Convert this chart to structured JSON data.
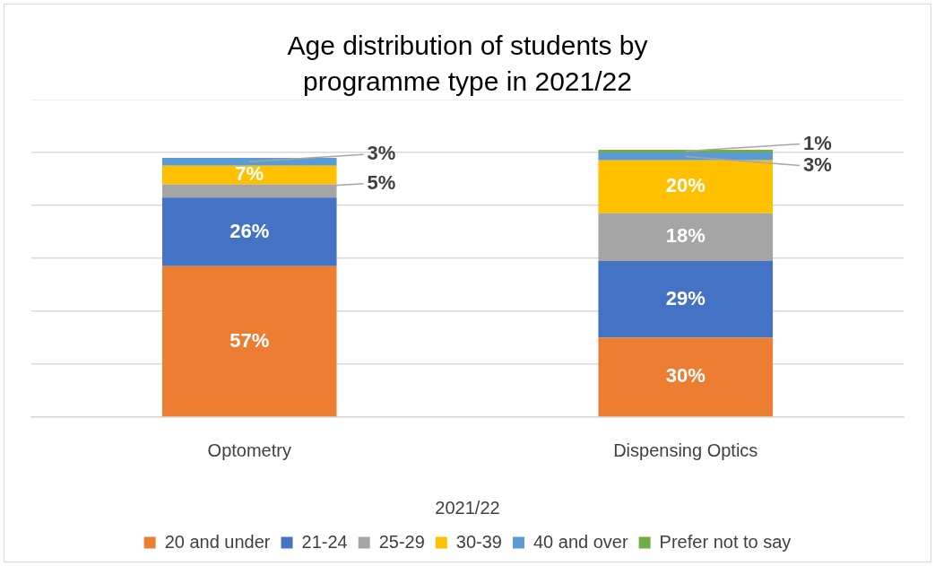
{
  "chart_data": {
    "type": "bar",
    "title": "Age  distribution of students by programme type in 2021/22",
    "xlabel": "2021/22",
    "categories": [
      "Optometry",
      "Dispensing Optics"
    ],
    "stacked": true,
    "series": [
      {
        "name": "20 and under",
        "color": "#ed7d31",
        "values": [
          57,
          30
        ],
        "value_labels": [
          "57%",
          "30%"
        ]
      },
      {
        "name": "21-24",
        "color": "#4472c4",
        "values": [
          26,
          29
        ],
        "value_labels": [
          "26%",
          "29%"
        ]
      },
      {
        "name": "25-29",
        "color": "#a5a5a5",
        "values": [
          5,
          18
        ],
        "value_labels": [
          "5%",
          "18%"
        ]
      },
      {
        "name": "30-39",
        "color": "#ffc000",
        "values": [
          7,
          20
        ],
        "value_labels": [
          "7%",
          "20%"
        ]
      },
      {
        "name": "40 and over",
        "color": "#5b9bd5",
        "values": [
          3,
          3
        ],
        "value_labels": [
          "3%",
          "3%"
        ]
      },
      {
        "name": "Prefer not to say",
        "color": "#70ad47",
        "values": [
          null,
          1
        ],
        "value_labels": [
          null,
          "1%"
        ]
      }
    ],
    "ylim": [
      0,
      120
    ],
    "yticks": [
      {
        "value": 0,
        "label": null
      },
      {
        "value": 20,
        "label": null
      },
      {
        "value": 40,
        "label": null
      },
      {
        "value": 60,
        "label": null
      },
      {
        "value": 80,
        "label": null
      },
      {
        "value": 100,
        "label": null
      },
      {
        "value": 120,
        "label": null
      }
    ],
    "tick_labels": "x",
    "grid": "y",
    "legend": "bottom"
  }
}
